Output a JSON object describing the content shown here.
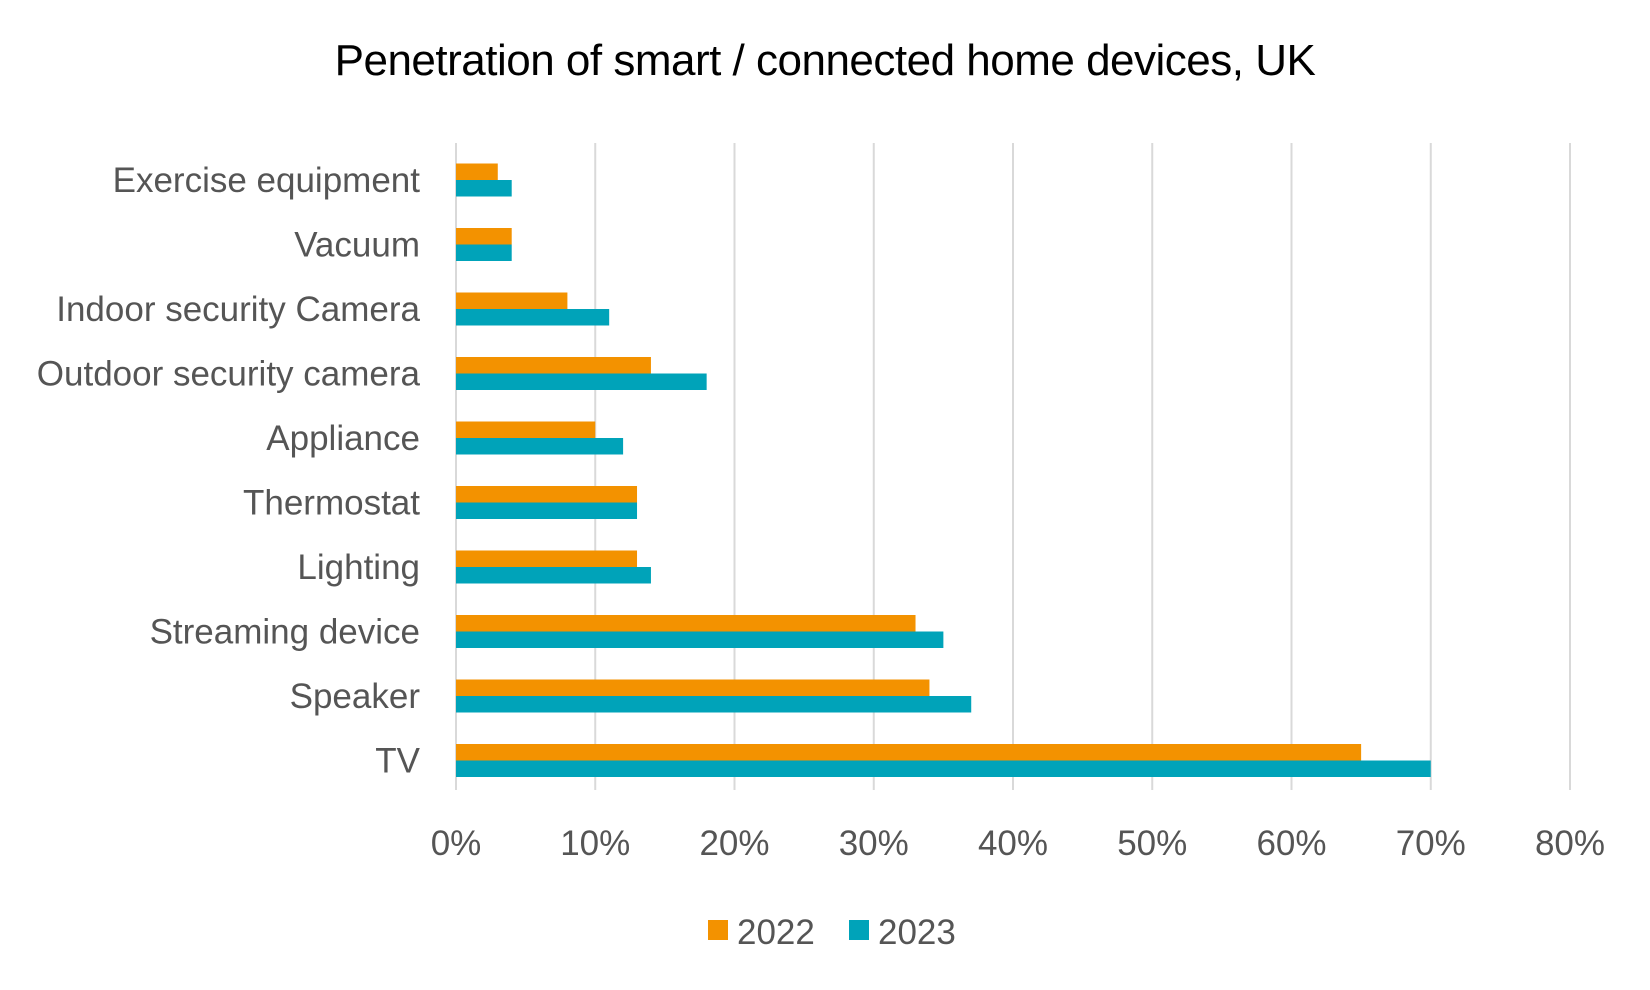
{
  "chart_data": {
    "type": "bar",
    "orientation": "horizontal",
    "title": "Penetration of smart / connected home devices, UK",
    "xlabel": "",
    "ylabel": "",
    "categories": [
      "Exercise equipment",
      "Vacuum",
      "Indoor security Camera",
      "Outdoor security camera",
      "Appliance",
      "Thermostat",
      "Lighting",
      "Streaming device",
      "Speaker",
      "TV"
    ],
    "series": [
      {
        "name": "2022",
        "color": "#f39200",
        "values": [
          3,
          4,
          8,
          14,
          10,
          13,
          13,
          33,
          34,
          65
        ]
      },
      {
        "name": "2023",
        "color": "#00a3b9",
        "values": [
          4,
          4,
          11,
          18,
          12,
          13,
          14,
          35,
          37,
          70
        ]
      }
    ],
    "xlim": [
      0,
      80
    ],
    "x_ticks": [
      0,
      10,
      20,
      30,
      40,
      50,
      60,
      70,
      80
    ],
    "x_tick_labels": [
      "0%",
      "10%",
      "20%",
      "30%",
      "40%",
      "50%",
      "60%",
      "70%",
      "80%"
    ],
    "value_unit": "%",
    "grid": "vertical",
    "legend_position": "bottom"
  }
}
